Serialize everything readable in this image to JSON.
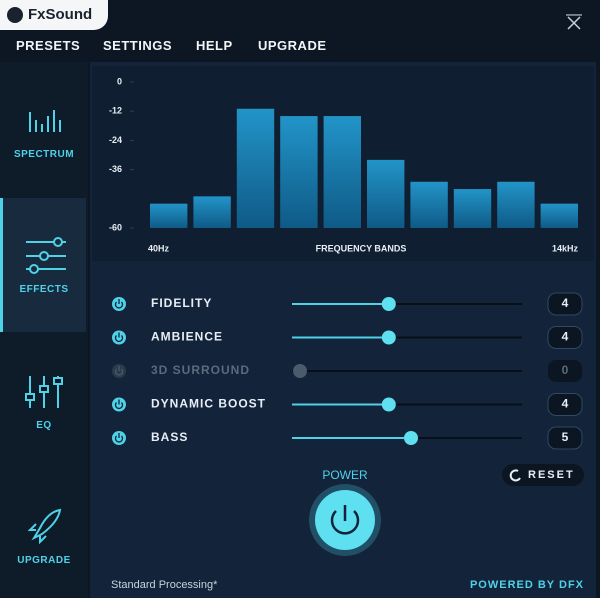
{
  "header": {
    "app_name": "FxSound"
  },
  "menu": [
    "PRESETS",
    "SETTINGS",
    "HELP",
    "UPGRADE"
  ],
  "sidebar": [
    "SPECTRUM",
    "EFFECTS",
    "EQ",
    "UPGRADE"
  ],
  "spectrum": {
    "type": "bar",
    "values": [
      -50,
      -47,
      -11,
      -14,
      -14,
      -32,
      -41,
      -44,
      -41,
      -50
    ],
    "ylim": [
      -60,
      0
    ],
    "yticks": [
      0,
      -12,
      -24,
      -36,
      -60
    ],
    "x_labels": [
      "40Hz",
      "FREQUENCY BANDS",
      "14kHz"
    ]
  },
  "effects": [
    {
      "name": "FIDELITY",
      "value": 4,
      "enabled": true
    },
    {
      "name": "AMBIENCE",
      "value": 4,
      "enabled": true
    },
    {
      "name": "3D SURROUND",
      "value": 0,
      "enabled": false
    },
    {
      "name": "DYNAMIC BOOST",
      "value": 4,
      "enabled": true
    },
    {
      "name": "BASS",
      "value": 5,
      "enabled": true
    }
  ],
  "power": {
    "label": "POWER"
  },
  "reset": "RESET",
  "footer": {
    "status": "Standard Processing*",
    "powered_by": "POWERED BY DFX"
  }
}
